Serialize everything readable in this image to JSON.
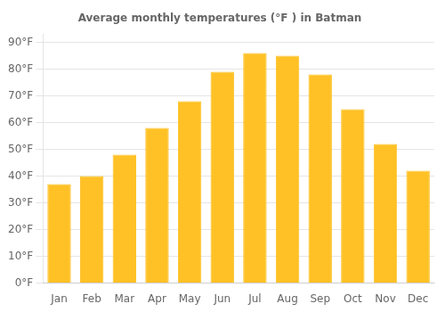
{
  "chart_data": {
    "type": "bar",
    "title": "Average monthly temperatures (°F ) in Batman",
    "categories": [
      "Jan",
      "Feb",
      "Mar",
      "Apr",
      "May",
      "Jun",
      "Jul",
      "Aug",
      "Sep",
      "Oct",
      "Nov",
      "Dec"
    ],
    "values": [
      37,
      40,
      48,
      58,
      68,
      79,
      86,
      85,
      78,
      65,
      52,
      42
    ],
    "color": "#FFC125",
    "ylim": [
      0,
      93
    ],
    "yticks": [
      {
        "value": 0,
        "label": "0°F"
      },
      {
        "value": 10,
        "label": "10°F"
      },
      {
        "value": 20,
        "label": "20°F"
      },
      {
        "value": 30,
        "label": "30°F"
      },
      {
        "value": 40,
        "label": "40°F"
      },
      {
        "value": 50,
        "label": "50°F"
      },
      {
        "value": 60,
        "label": "60°F"
      },
      {
        "value": 70,
        "label": "70°F"
      },
      {
        "value": 80,
        "label": "80°F"
      },
      {
        "value": 90,
        "label": "90°F"
      }
    ],
    "grid": true
  }
}
